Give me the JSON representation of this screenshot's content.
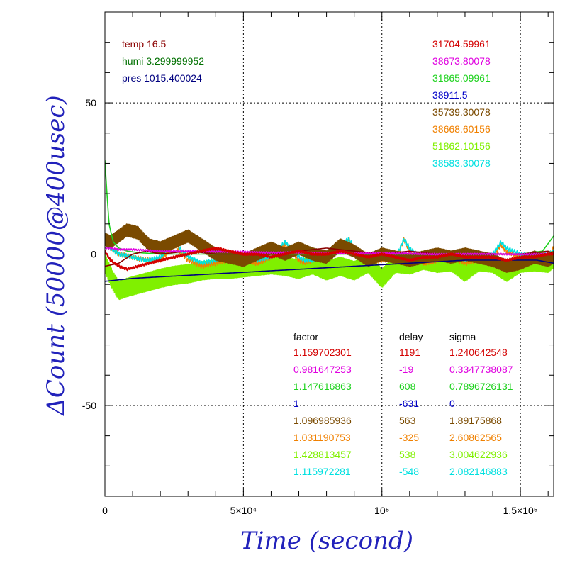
{
  "chart_data": {
    "type": "line",
    "xlabel": "Time (second)",
    "ylabel": "ΔCount (50000@400usec)",
    "xlim": [
      0,
      162000
    ],
    "ylim": [
      -80,
      80
    ],
    "x_ticks": [
      {
        "value": 0,
        "label": "0"
      },
      {
        "value": 50000,
        "label": "5×10⁴"
      },
      {
        "value": 100000,
        "label": "10⁵"
      },
      {
        "value": 150000,
        "label": "1.5×10⁵"
      }
    ],
    "y_ticks": [
      {
        "value": -50,
        "label": "-50"
      },
      {
        "value": 0,
        "label": "0"
      },
      {
        "value": 50,
        "label": "50"
      }
    ],
    "grid": "dotted at major ticks",
    "environment": [
      {
        "text": "temp 16.5",
        "color": "#8b0000"
      },
      {
        "text": "humi 3.299999952",
        "color": "#007000"
      },
      {
        "text": "pres 1015.400024",
        "color": "#000080"
      }
    ],
    "baselines": [
      {
        "value": "31704.59961",
        "color": "#d40000"
      },
      {
        "value": "38673.80078",
        "color": "#e000e0"
      },
      {
        "value": "31865.09961",
        "color": "#1ed21e"
      },
      {
        "value": "38911.5",
        "color": "#0000c8"
      },
      {
        "value": "35739.30078",
        "color": "#7a4a00"
      },
      {
        "value": "38668.60156",
        "color": "#f08000"
      },
      {
        "value": "51862.10156",
        "color": "#80f000"
      },
      {
        "value": "38583.30078",
        "color": "#00e0e0"
      }
    ],
    "table": {
      "headers": [
        "factor",
        "delay",
        "sigma"
      ],
      "rows": [
        {
          "factor": "1.159702301",
          "delay": "1191",
          "sigma": "1.240642548",
          "color": "#d40000"
        },
        {
          "factor": "0.981647253",
          "delay": "-19",
          "sigma": "0.3347738087",
          "color": "#e000e0"
        },
        {
          "factor": "1.147616863",
          "delay": "608",
          "sigma": "0.7896726131",
          "color": "#1ed21e"
        },
        {
          "factor": "1",
          "delay": "-631",
          "sigma": "0",
          "color": "#0000c8"
        },
        {
          "factor": "1.096985936",
          "delay": "563",
          "sigma": "1.89175868",
          "color": "#7a4a00"
        },
        {
          "factor": "1.031190753",
          "delay": "-325",
          "sigma": "2.60862565",
          "color": "#f08000"
        },
        {
          "factor": "1.428813457",
          "delay": "538",
          "sigma": "3.004622936",
          "color": "#80f000"
        },
        {
          "factor": "1.115972281",
          "delay": "-548",
          "sigma": "2.082146883",
          "color": "#00e0e0"
        }
      ]
    },
    "series": [
      {
        "color": "#80f000",
        "kind": "band",
        "x": [
          0,
          1500,
          3000,
          5000,
          8000,
          12000,
          16000,
          20000,
          25000,
          30000,
          35000,
          40000,
          45000,
          50000,
          55000,
          60000,
          65000,
          70000,
          75000,
          80000,
          85000,
          90000,
          95000,
          100000,
          105000,
          110000,
          115000,
          120000,
          125000,
          130000,
          135000,
          140000,
          145000,
          150000,
          155000,
          160000,
          162000
        ],
        "y": [
          -3,
          -6,
          -9,
          -12,
          -11,
          -10,
          -9,
          -8,
          -7,
          -6.5,
          -5.5,
          -5,
          -5,
          -4.5,
          -4,
          -3.5,
          -4,
          -5,
          -3.5,
          -5.5,
          -4,
          -5.5,
          -3,
          -8,
          -3,
          -3.5,
          -2,
          -3,
          -2.5,
          -6,
          -2.5,
          -3,
          -6,
          -3,
          -2.5,
          -3,
          -1.5
        ],
        "amp": 3
      },
      {
        "color": "#f08000",
        "kind": "line",
        "x": [
          0,
          2000,
          5000,
          10000,
          15000,
          20000,
          25000,
          30000,
          35000,
          40000,
          45000,
          50000,
          55000,
          60000,
          65000,
          68000,
          70000,
          72000,
          75000,
          80000,
          85000,
          88000,
          90000,
          95000,
          100000,
          105000,
          108000,
          110000,
          115000,
          120000,
          125000,
          130000,
          135000,
          140000,
          143000,
          145000,
          150000,
          155000,
          160000,
          162000
        ],
        "y": [
          5,
          2,
          0,
          -1,
          -2,
          -2,
          3,
          -2,
          -4,
          -3,
          -2,
          -2,
          -3,
          -1,
          3,
          0,
          -2,
          -3,
          -2,
          -1,
          2,
          5,
          1,
          -3,
          -2,
          -2,
          5,
          1,
          -3,
          -2,
          -1,
          -3,
          -2,
          -1,
          3,
          1,
          -1,
          -2,
          -1,
          2
        ],
        "amp": 0.8
      },
      {
        "color": "#00e0e0",
        "kind": "line",
        "x": [
          0,
          2000,
          5000,
          10000,
          15000,
          20000,
          25000,
          30000,
          35000,
          40000,
          45000,
          50000,
          55000,
          60000,
          65000,
          68000,
          70000,
          72000,
          75000,
          80000,
          85000,
          88000,
          90000,
          95000,
          100000,
          105000,
          108000,
          110000,
          115000,
          120000,
          125000,
          130000,
          135000,
          140000,
          143000,
          145000,
          150000,
          155000,
          160000,
          162000
        ],
        "y": [
          4,
          2,
          0,
          -1,
          -2,
          -1,
          4,
          -1,
          -3,
          -2,
          -1,
          -2,
          -2,
          -1,
          4,
          1,
          -1,
          -2,
          -2,
          -1,
          3,
          5,
          2,
          -2,
          -1,
          -1,
          5,
          2,
          -2,
          -1,
          -1,
          -2,
          -1,
          0,
          4,
          2,
          0,
          -1,
          0,
          1
        ],
        "amp": 0.7
      },
      {
        "color": "#7a4a00",
        "kind": "band",
        "x": [
          0,
          2000,
          5000,
          8000,
          12000,
          16000,
          20000,
          25000,
          30000,
          35000,
          40000,
          45000,
          50000,
          55000,
          60000,
          65000,
          70000,
          75000,
          80000,
          85000,
          90000,
          95000,
          100000,
          105000,
          110000,
          115000,
          120000,
          125000,
          130000,
          135000,
          140000,
          145000,
          150000,
          155000,
          160000,
          162000
        ],
        "y": [
          5,
          4,
          6,
          8,
          7,
          3,
          2,
          4,
          6,
          3,
          0,
          -1,
          -2,
          0,
          2,
          0,
          2,
          0,
          -1,
          3,
          1,
          -2,
          0,
          -1,
          -2,
          -1,
          0,
          -1,
          0,
          -1,
          -2,
          -4,
          -3,
          -1,
          -2,
          -1
        ],
        "amp": 2
      },
      {
        "color": "#1ed21e",
        "kind": "line",
        "x": [
          0,
          600,
          1500,
          3000,
          5000,
          8000,
          12000,
          20000,
          30000,
          40000,
          50000,
          60000,
          70000,
          80000,
          90000,
          100000,
          110000,
          120000,
          130000,
          140000,
          150000,
          158000,
          162000
        ],
        "y": [
          31,
          22,
          10,
          4,
          2,
          1,
          0.5,
          0,
          0,
          0,
          0,
          0,
          0,
          0,
          0,
          0,
          0,
          0,
          0,
          0,
          0,
          1,
          6
        ],
        "amp": 0
      },
      {
        "color": "#8b0000",
        "kind": "line",
        "x": [
          0,
          5000,
          10000,
          15000,
          20000,
          30000,
          40000,
          50000,
          60000,
          70000,
          80000,
          90000,
          100000,
          110000,
          120000,
          130000,
          140000,
          150000,
          160000,
          162000
        ],
        "y": [
          -4,
          -3,
          0,
          1,
          0,
          1,
          0,
          0,
          0,
          1,
          2,
          1,
          0,
          1,
          0,
          0,
          0,
          0,
          1,
          0
        ],
        "amp": 0
      },
      {
        "color": "#000080",
        "kind": "line",
        "x": [
          0,
          5000,
          10000,
          20000,
          30000,
          40000,
          50000,
          60000,
          70000,
          80000,
          90000,
          100000,
          110000,
          120000,
          130000,
          140000,
          150000,
          156000,
          162000
        ],
        "y": [
          -9,
          -8.5,
          -8,
          -7.5,
          -7,
          -6.5,
          -6,
          -5.5,
          -5,
          -4.5,
          -4,
          -3.5,
          -3,
          -2.5,
          -2,
          -2,
          -2,
          -2,
          -3
        ],
        "amp": 0
      },
      {
        "color": "#e000e0",
        "kind": "line",
        "x": [
          0,
          2000,
          5000,
          10000,
          20000,
          30000,
          40000,
          50000,
          60000,
          70000,
          80000,
          90000,
          100000,
          110000,
          120000,
          130000,
          140000,
          150000,
          160000,
          162000
        ],
        "y": [
          2,
          2,
          1.5,
          1.5,
          1,
          1,
          0.8,
          0.8,
          0.5,
          0.5,
          0.3,
          0.3,
          0.2,
          0.2,
          0,
          0,
          0,
          0,
          0,
          0
        ],
        "amp": 0.3
      },
      {
        "color": "#d40000",
        "kind": "line",
        "x": [
          0,
          2000,
          5000,
          8000,
          12000,
          16000,
          20000,
          25000,
          30000,
          35000,
          40000,
          45000,
          50000,
          55000,
          60000,
          65000,
          70000,
          75000,
          80000,
          85000,
          90000,
          95000,
          100000,
          105000,
          110000,
          115000,
          120000,
          125000,
          130000,
          135000,
          140000,
          145000,
          150000,
          155000,
          160000,
          162000
        ],
        "y": [
          1,
          -2,
          -4,
          -5,
          -4,
          -3,
          -2,
          -1,
          0,
          1,
          2,
          1,
          0,
          0,
          -1,
          0,
          1,
          0,
          0,
          1,
          0,
          -1,
          0,
          -1,
          -2,
          -1,
          -1,
          0,
          -1,
          -1,
          -1,
          -2,
          -1,
          -1,
          0,
          0
        ],
        "amp": 0.3
      }
    ]
  }
}
